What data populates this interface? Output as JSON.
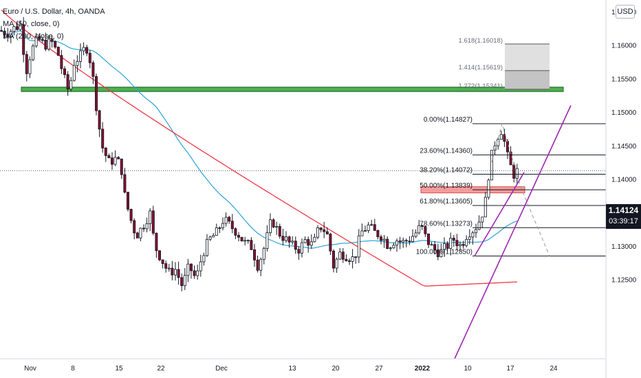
{
  "legend": {
    "symbol": "Euro / U.S. Dollar, 4h, OANDA",
    "ma1": "MA (50, close, 0)",
    "ma2": "MA (200, close, 0)"
  },
  "currency_badge": "USD",
  "last_price": {
    "price": "1.14124",
    "countdown": "03:39:17"
  },
  "chart_data": {
    "type": "candlestick",
    "title": "Euro / U.S. Dollar, 4h, OANDA",
    "ylim": [
      1.122,
      1.169
    ],
    "y_ticks": [
      "1.16500",
      "1.16000",
      "1.15500",
      "1.15000",
      "1.14500",
      "1.14000",
      "1.13500",
      "1.13000",
      "1.12500"
    ],
    "x_ticks": [
      "Nov",
      "8",
      "15",
      "22",
      "Dec",
      "13",
      "20",
      "27",
      "2022",
      "10",
      "17",
      "24"
    ],
    "series": [
      {
        "name": "MA (50, close, 0)",
        "color": "#2ba3d6"
      },
      {
        "name": "MA (200, close, 0)",
        "color": "#f23645"
      }
    ],
    "support_zone": {
      "price": 1.1534,
      "color": "#4caf50"
    },
    "fib_levels": [
      {
        "label": "0.00%(1.14827)",
        "price": 1.14827
      },
      {
        "label": "23.60%(1.14360)",
        "price": 1.1436
      },
      {
        "label": "38.20%(1.14072)",
        "price": 1.14072
      },
      {
        "label": "50.00%(1.13839)",
        "price": 1.13839
      },
      {
        "label": "61.80%(1.13605)",
        "price": 1.13605
      },
      {
        "label": "78.60%(1.13273)",
        "price": 1.13273
      },
      {
        "label": "100.00%(1.12850)",
        "price": 1.1285
      }
    ],
    "fib_extensions": [
      {
        "label": "1.618(1.16018)",
        "price": 1.16018
      },
      {
        "label": "1.414(1.15619)",
        "price": 1.15619
      },
      {
        "label": "1.272(1.15341)",
        "price": 1.15341
      }
    ],
    "last_price": 1.14124,
    "colors": {
      "up": "#ffffff",
      "down": "#880e2e",
      "outline": "#131722",
      "trendline": "#9c27b0",
      "zone": "#f23645"
    }
  }
}
